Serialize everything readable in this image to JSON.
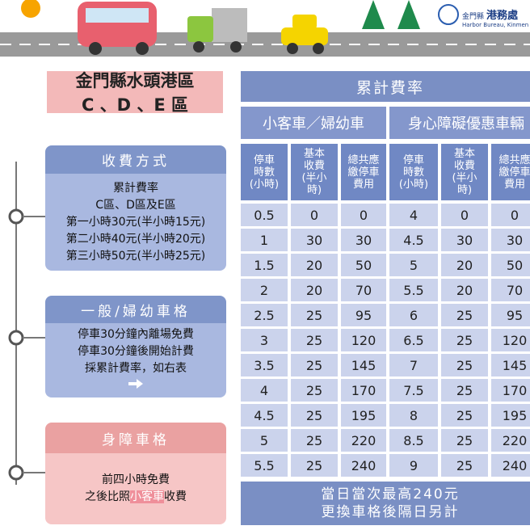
{
  "header": {
    "org": "金門縣",
    "bureau": "港務處",
    "english": "Harbor Bureau, Kinmen Co"
  },
  "title": {
    "line1": "金門縣水頭港區",
    "line2": "C 、D 、E 區"
  },
  "sections": [
    {
      "heading": "收費方式",
      "lines": [
        "累計費率",
        "C區、D區及E區",
        "第一小時30元(半小時15元)",
        "第二小時40元(半小時20元)",
        "第三小時50元(半小時25元)"
      ]
    },
    {
      "heading": "一般/婦幼車格",
      "lines": [
        "停車30分鐘內離場免費",
        "停車30分鐘後開始計費",
        "採累計費率，如右表"
      ]
    },
    {
      "heading": "身障車格",
      "lines": [
        "前四小時免費"
      ],
      "last": [
        "之後比照",
        "小客車",
        "收費"
      ]
    }
  ],
  "table": {
    "title": "累計費率",
    "groups": [
      "小客車／婦幼車",
      "身心障礙優惠車輛"
    ],
    "columns": [
      [
        "停車",
        "時數",
        "(小時)"
      ],
      [
        "基本",
        "收費",
        "(半小",
        "時)"
      ],
      [
        "總共應",
        "繳停車",
        "費用"
      ],
      [
        "停車",
        "時數",
        "(小時)"
      ],
      [
        "基本",
        "收費",
        "(半小",
        "時)"
      ],
      [
        "總共應",
        "繳停車",
        "費用"
      ]
    ],
    "rows": [
      [
        "0.5",
        "0",
        "0",
        "4",
        "0",
        "0"
      ],
      [
        "1",
        "30",
        "30",
        "4.5",
        "30",
        "30"
      ],
      [
        "1.5",
        "20",
        "50",
        "5",
        "20",
        "50"
      ],
      [
        "2",
        "20",
        "70",
        "5.5",
        "20",
        "70"
      ],
      [
        "2.5",
        "25",
        "95",
        "6",
        "25",
        "95"
      ],
      [
        "3",
        "25",
        "120",
        "6.5",
        "25",
        "120"
      ],
      [
        "3.5",
        "25",
        "145",
        "7",
        "25",
        "145"
      ],
      [
        "4",
        "25",
        "170",
        "7.5",
        "25",
        "170"
      ],
      [
        "4.5",
        "25",
        "195",
        "8",
        "25",
        "195"
      ],
      [
        "5",
        "25",
        "220",
        "8.5",
        "25",
        "220"
      ],
      [
        "5.5",
        "25",
        "240",
        "9",
        "25",
        "240"
      ]
    ],
    "footer": [
      "當日當次最高240元",
      "更換車格後隔日另計"
    ]
  }
}
